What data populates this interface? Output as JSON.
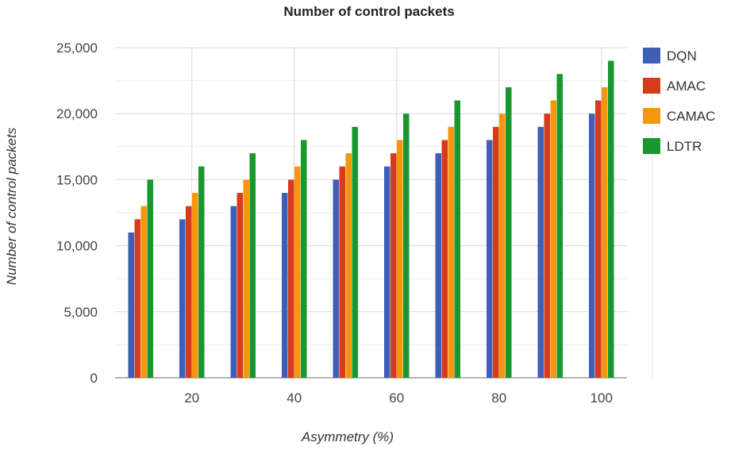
{
  "chart_data": {
    "type": "bar",
    "title": "Number of control packets",
    "xlabel": "Asymmetry (%)",
    "ylabel": "Number of control packets",
    "ylim": [
      0,
      25000
    ],
    "categories": [
      "10",
      "20",
      "30",
      "40",
      "50",
      "60",
      "70",
      "80",
      "90",
      "100"
    ],
    "x_tick_labels": [
      "20",
      "40",
      "60",
      "80",
      "100"
    ],
    "y_tick_labels": [
      "0",
      "5,000",
      "10,000",
      "15,000",
      "20,000",
      "25,000"
    ],
    "y_ticks": [
      0,
      5000,
      10000,
      15000,
      20000,
      25000
    ],
    "legend_position": "right",
    "grid": true,
    "series": [
      {
        "name": "DQN",
        "color": "#3d5fb8",
        "values": [
          11000,
          12000,
          13000,
          14000,
          15000,
          16000,
          17000,
          18000,
          19000,
          20000
        ]
      },
      {
        "name": "AMAC",
        "color": "#d83a1c",
        "values": [
          12000,
          13000,
          14000,
          15000,
          16000,
          17000,
          18000,
          19000,
          20000,
          21000
        ]
      },
      {
        "name": "CAMAC",
        "color": "#f5960c",
        "values": [
          13000,
          14000,
          15000,
          16000,
          17000,
          18000,
          19000,
          20000,
          21000,
          22000
        ]
      },
      {
        "name": "LDTR",
        "color": "#1a962e",
        "values": [
          15000,
          16000,
          17000,
          18000,
          19000,
          20000,
          21000,
          22000,
          23000,
          24000
        ]
      }
    ]
  }
}
